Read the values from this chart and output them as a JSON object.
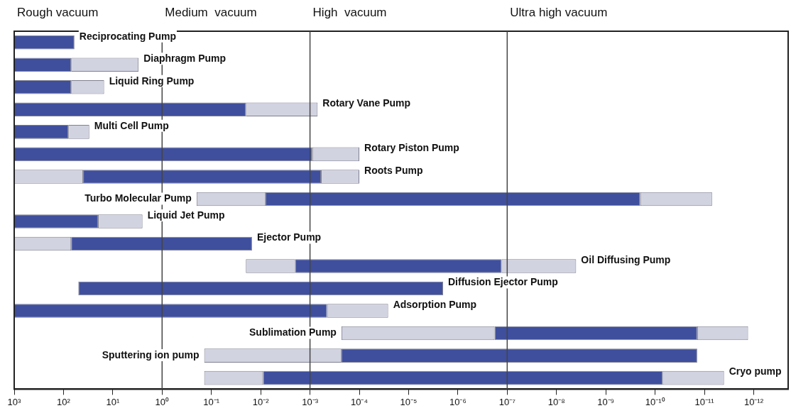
{
  "chart_data": {
    "type": "bar",
    "orientation": "horizontal",
    "tick_labels": "x",
    "grid": false,
    "legend": false,
    "categories": [
      "Reciprocating Pump",
      "Diaphragm Pump",
      "Liquid Ring Pump",
      "Rotary Vane Pump",
      "Multi Cell Pump",
      "Rotary Piston Pump",
      "Roots Pump",
      "Turbo Molecular Pump",
      "Liquid Jet Pump",
      "Ejector Pump",
      "Oil Diffusing Pump",
      "Diffusion Ejector Pump",
      "Adsorption Pump",
      "Sublimation Pump",
      "Sputtering ion pump",
      "Cryo pump"
    ],
    "xlim": [
      1000,
      2e-13
    ],
    "xticks": [
      {
        "value": 1000,
        "label": "10³"
      },
      {
        "value": 100,
        "label": "10²"
      },
      {
        "value": 10,
        "label": "10¹"
      },
      {
        "value": 1,
        "label": "10⁰"
      },
      {
        "value": 0.1,
        "label": "10⁻¹"
      },
      {
        "value": 0.01,
        "label": "10⁻²"
      },
      {
        "value": 0.001,
        "label": "10⁻³"
      },
      {
        "value": 0.0001,
        "label": "10⁻⁴"
      },
      {
        "value": 1e-05,
        "label": "10⁻⁵"
      },
      {
        "value": 1e-06,
        "label": "10⁻⁶"
      },
      {
        "value": 1e-07,
        "label": "10⁻⁷"
      },
      {
        "value": 1e-08,
        "label": "10⁻⁸"
      },
      {
        "value": 1e-09,
        "label": "10⁻⁹"
      },
      {
        "value": 1e-10,
        "label": "10⁻¹⁰"
      },
      {
        "value": 1e-11,
        "label": "10⁻¹¹"
      },
      {
        "value": 1e-12,
        "label": "10⁻¹²"
      }
    ],
    "log": "x",
    "series": [
      {
        "color": "#d2d3e1",
        "base": [
          null,
          null,
          null,
          null,
          null,
          null,
          1000,
          0.2,
          null,
          1000,
          0.02,
          null,
          null,
          0.00023,
          0.14,
          0.14
        ],
        "values": [
          null,
          null,
          null,
          null,
          null,
          null,
          -960,
          -0.192,
          null,
          -930,
          -0.018,
          null,
          null,
          -0.00022982,
          -0.13977,
          -0.131
        ]
      },
      {
        "color": "#3f4f9e",
        "base": [
          1000,
          1000,
          1000,
          1000,
          1000,
          1000,
          40,
          0.008,
          1000,
          70,
          0.002,
          50,
          1000,
          1.8e-07,
          0.00023,
          0.009
        ],
        "values": [
          -940,
          -930,
          -930,
          -999.98,
          -920,
          -999.9991,
          -39.9994,
          -0.0079999998,
          -980,
          -69.985,
          -0.00199987,
          -49.999998,
          -999.99955,
          -1.79986e-07,
          -0.000229999986,
          -0.00899999993
        ]
      },
      {
        "color": "#d2d3e1",
        "base": [
          null,
          70,
          70,
          0.02,
          80,
          0.0009,
          0.0006,
          2e-10,
          20,
          null,
          1.3e-07,
          null,
          0.00045,
          1.4e-11,
          null,
          7e-11
        ],
        "values": [
          null,
          -67,
          -55,
          -0.0193,
          -50,
          -0.0008,
          -0.0005,
          -1.93e-10,
          -17.5,
          null,
          -1.26e-07,
          null,
          -0.000424,
          -1.27e-11,
          null,
          -6.6e-11
        ]
      }
    ],
    "ref_lines": [
      {
        "axis": "x",
        "value": 1
      },
      {
        "axis": "x",
        "value": 0.001
      },
      {
        "axis": "x",
        "value": 1e-07
      }
    ],
    "annotations": [
      "Rough vacuum",
      "Medium  vacuum",
      "High  vacuum",
      "Ultra high vacuum"
    ]
  }
}
